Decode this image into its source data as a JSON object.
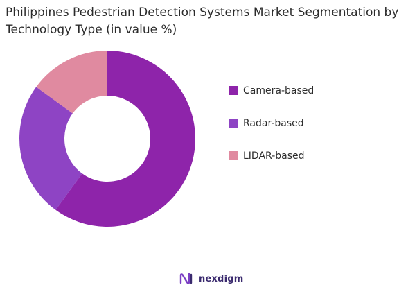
{
  "chart_data": {
    "type": "pie",
    "title": "Philippines Pedestrian Detection Systems Market Segmentation by Technology Type (in value %)",
    "donut": true,
    "legend_position": "right",
    "categories": [
      "Camera-based",
      "Radar-based",
      "LIDAR-based"
    ],
    "values": [
      60,
      25,
      15
    ],
    "colors": [
      "#8e24aa",
      "#8e44c4",
      "#e08aa0"
    ]
  },
  "brand": {
    "name": "nexdigm",
    "logo_icon": "nexdigm-logo-icon",
    "color": "#3a2a6e"
  }
}
